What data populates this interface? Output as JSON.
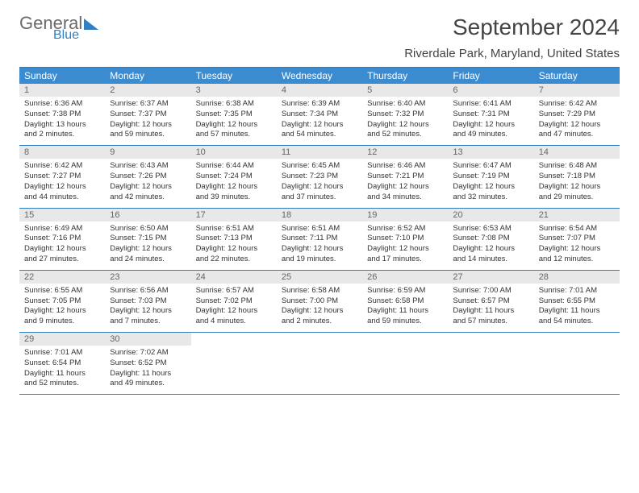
{
  "logo": {
    "text1": "General",
    "text2": "Blue"
  },
  "title": "September 2024",
  "subtitle": "Riverdale Park, Maryland, United States",
  "colors": {
    "header_bg": "#3a8bd0",
    "header_text": "#ffffff",
    "rule": "#2f7fc1",
    "daynum_bg": "#e8e8e8",
    "text": "#333333",
    "logo_accent": "#2f7fc1"
  },
  "typography": {
    "title_fontsize": 28,
    "subtitle_fontsize": 15,
    "dayheader_fontsize": 12,
    "daynum_fontsize": 11,
    "body_fontsize": 9.5
  },
  "day_names": [
    "Sunday",
    "Monday",
    "Tuesday",
    "Wednesday",
    "Thursday",
    "Friday",
    "Saturday"
  ],
  "weeks": [
    [
      {
        "num": "1",
        "sunrise": "Sunrise: 6:36 AM",
        "sunset": "Sunset: 7:38 PM",
        "daylight": "Daylight: 13 hours and 2 minutes."
      },
      {
        "num": "2",
        "sunrise": "Sunrise: 6:37 AM",
        "sunset": "Sunset: 7:37 PM",
        "daylight": "Daylight: 12 hours and 59 minutes."
      },
      {
        "num": "3",
        "sunrise": "Sunrise: 6:38 AM",
        "sunset": "Sunset: 7:35 PM",
        "daylight": "Daylight: 12 hours and 57 minutes."
      },
      {
        "num": "4",
        "sunrise": "Sunrise: 6:39 AM",
        "sunset": "Sunset: 7:34 PM",
        "daylight": "Daylight: 12 hours and 54 minutes."
      },
      {
        "num": "5",
        "sunrise": "Sunrise: 6:40 AM",
        "sunset": "Sunset: 7:32 PM",
        "daylight": "Daylight: 12 hours and 52 minutes."
      },
      {
        "num": "6",
        "sunrise": "Sunrise: 6:41 AM",
        "sunset": "Sunset: 7:31 PM",
        "daylight": "Daylight: 12 hours and 49 minutes."
      },
      {
        "num": "7",
        "sunrise": "Sunrise: 6:42 AM",
        "sunset": "Sunset: 7:29 PM",
        "daylight": "Daylight: 12 hours and 47 minutes."
      }
    ],
    [
      {
        "num": "8",
        "sunrise": "Sunrise: 6:42 AM",
        "sunset": "Sunset: 7:27 PM",
        "daylight": "Daylight: 12 hours and 44 minutes."
      },
      {
        "num": "9",
        "sunrise": "Sunrise: 6:43 AM",
        "sunset": "Sunset: 7:26 PM",
        "daylight": "Daylight: 12 hours and 42 minutes."
      },
      {
        "num": "10",
        "sunrise": "Sunrise: 6:44 AM",
        "sunset": "Sunset: 7:24 PM",
        "daylight": "Daylight: 12 hours and 39 minutes."
      },
      {
        "num": "11",
        "sunrise": "Sunrise: 6:45 AM",
        "sunset": "Sunset: 7:23 PM",
        "daylight": "Daylight: 12 hours and 37 minutes."
      },
      {
        "num": "12",
        "sunrise": "Sunrise: 6:46 AM",
        "sunset": "Sunset: 7:21 PM",
        "daylight": "Daylight: 12 hours and 34 minutes."
      },
      {
        "num": "13",
        "sunrise": "Sunrise: 6:47 AM",
        "sunset": "Sunset: 7:19 PM",
        "daylight": "Daylight: 12 hours and 32 minutes."
      },
      {
        "num": "14",
        "sunrise": "Sunrise: 6:48 AM",
        "sunset": "Sunset: 7:18 PM",
        "daylight": "Daylight: 12 hours and 29 minutes."
      }
    ],
    [
      {
        "num": "15",
        "sunrise": "Sunrise: 6:49 AM",
        "sunset": "Sunset: 7:16 PM",
        "daylight": "Daylight: 12 hours and 27 minutes."
      },
      {
        "num": "16",
        "sunrise": "Sunrise: 6:50 AM",
        "sunset": "Sunset: 7:15 PM",
        "daylight": "Daylight: 12 hours and 24 minutes."
      },
      {
        "num": "17",
        "sunrise": "Sunrise: 6:51 AM",
        "sunset": "Sunset: 7:13 PM",
        "daylight": "Daylight: 12 hours and 22 minutes."
      },
      {
        "num": "18",
        "sunrise": "Sunrise: 6:51 AM",
        "sunset": "Sunset: 7:11 PM",
        "daylight": "Daylight: 12 hours and 19 minutes."
      },
      {
        "num": "19",
        "sunrise": "Sunrise: 6:52 AM",
        "sunset": "Sunset: 7:10 PM",
        "daylight": "Daylight: 12 hours and 17 minutes."
      },
      {
        "num": "20",
        "sunrise": "Sunrise: 6:53 AM",
        "sunset": "Sunset: 7:08 PM",
        "daylight": "Daylight: 12 hours and 14 minutes."
      },
      {
        "num": "21",
        "sunrise": "Sunrise: 6:54 AM",
        "sunset": "Sunset: 7:07 PM",
        "daylight": "Daylight: 12 hours and 12 minutes."
      }
    ],
    [
      {
        "num": "22",
        "sunrise": "Sunrise: 6:55 AM",
        "sunset": "Sunset: 7:05 PM",
        "daylight": "Daylight: 12 hours and 9 minutes."
      },
      {
        "num": "23",
        "sunrise": "Sunrise: 6:56 AM",
        "sunset": "Sunset: 7:03 PM",
        "daylight": "Daylight: 12 hours and 7 minutes."
      },
      {
        "num": "24",
        "sunrise": "Sunrise: 6:57 AM",
        "sunset": "Sunset: 7:02 PM",
        "daylight": "Daylight: 12 hours and 4 minutes."
      },
      {
        "num": "25",
        "sunrise": "Sunrise: 6:58 AM",
        "sunset": "Sunset: 7:00 PM",
        "daylight": "Daylight: 12 hours and 2 minutes."
      },
      {
        "num": "26",
        "sunrise": "Sunrise: 6:59 AM",
        "sunset": "Sunset: 6:58 PM",
        "daylight": "Daylight: 11 hours and 59 minutes."
      },
      {
        "num": "27",
        "sunrise": "Sunrise: 7:00 AM",
        "sunset": "Sunset: 6:57 PM",
        "daylight": "Daylight: 11 hours and 57 minutes."
      },
      {
        "num": "28",
        "sunrise": "Sunrise: 7:01 AM",
        "sunset": "Sunset: 6:55 PM",
        "daylight": "Daylight: 11 hours and 54 minutes."
      }
    ],
    [
      {
        "num": "29",
        "sunrise": "Sunrise: 7:01 AM",
        "sunset": "Sunset: 6:54 PM",
        "daylight": "Daylight: 11 hours and 52 minutes."
      },
      {
        "num": "30",
        "sunrise": "Sunrise: 7:02 AM",
        "sunset": "Sunset: 6:52 PM",
        "daylight": "Daylight: 11 hours and 49 minutes."
      },
      null,
      null,
      null,
      null,
      null
    ]
  ]
}
